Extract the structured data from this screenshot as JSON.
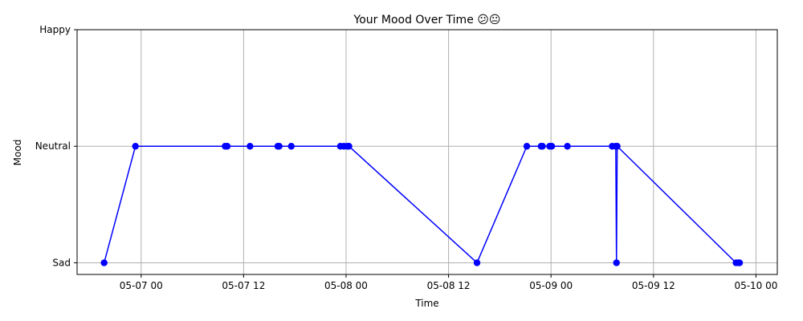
{
  "chart_data": {
    "type": "line",
    "title": "Your Mood Over Time 😕😐",
    "xlabel": "Time",
    "ylabel": "Mood",
    "x_tick_labels": [
      {
        "t": "2024-05-07 00:00",
        "label": "05-07 00"
      },
      {
        "t": "2024-05-07 12:00",
        "label": "05-07 12"
      },
      {
        "t": "2024-05-08 00:00",
        "label": "05-08 00"
      },
      {
        "t": "2024-05-08 12:00",
        "label": "05-08 12"
      },
      {
        "t": "2024-05-09 00:00",
        "label": "05-09 00"
      },
      {
        "t": "2024-05-09 12:00",
        "label": "05-09 12"
      },
      {
        "t": "2024-05-10 00:00",
        "label": "05-10 00"
      }
    ],
    "y_categories": [
      "Sad",
      "Neutral",
      "Happy"
    ],
    "xlim": [
      "2024-05-06 16:30",
      "2024-05-10 02:30"
    ],
    "ylim": [
      -0.05,
      1.0
    ],
    "grid": true,
    "colors": {
      "line": "#0000ff",
      "marker": "#0000ff",
      "grid": "#b0b0b0"
    },
    "points": [
      {
        "x": "2024-05-06 19:40",
        "y": "Sad"
      },
      {
        "x": "2024-05-06 23:20",
        "y": "Neutral"
      },
      {
        "x": "2024-05-07 09:50",
        "y": "Neutral"
      },
      {
        "x": "2024-05-07 10:05",
        "y": "Neutral"
      },
      {
        "x": "2024-05-07 12:45",
        "y": "Neutral"
      },
      {
        "x": "2024-05-07 16:00",
        "y": "Neutral"
      },
      {
        "x": "2024-05-07 16:10",
        "y": "Neutral"
      },
      {
        "x": "2024-05-07 17:35",
        "y": "Neutral"
      },
      {
        "x": "2024-05-07 23:20",
        "y": "Neutral"
      },
      {
        "x": "2024-05-07 23:45",
        "y": "Neutral"
      },
      {
        "x": "2024-05-08 00:10",
        "y": "Neutral"
      },
      {
        "x": "2024-05-08 00:20",
        "y": "Neutral"
      },
      {
        "x": "2024-05-08 15:20",
        "y": "Sad"
      },
      {
        "x": "2024-05-08 21:10",
        "y": "Neutral"
      },
      {
        "x": "2024-05-08 22:50",
        "y": "Neutral"
      },
      {
        "x": "2024-05-08 23:00",
        "y": "Neutral"
      },
      {
        "x": "2024-05-08 23:50",
        "y": "Neutral"
      },
      {
        "x": "2024-05-09 00:05",
        "y": "Neutral"
      },
      {
        "x": "2024-05-09 01:55",
        "y": "Neutral"
      },
      {
        "x": "2024-05-09 07:10",
        "y": "Neutral"
      },
      {
        "x": "2024-05-09 07:35",
        "y": "Neutral"
      },
      {
        "x": "2024-05-09 07:40",
        "y": "Sad"
      },
      {
        "x": "2024-05-09 07:45",
        "y": "Neutral"
      },
      {
        "x": "2024-05-09 21:40",
        "y": "Sad"
      },
      {
        "x": "2024-05-09 21:55",
        "y": "Sad"
      },
      {
        "x": "2024-05-09 22:05",
        "y": "Sad"
      }
    ]
  }
}
